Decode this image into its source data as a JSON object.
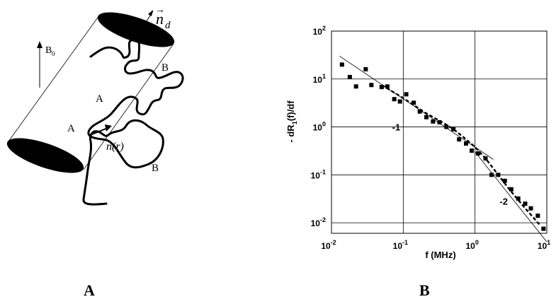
{
  "panel_a": {
    "panel_label": "A",
    "field_label": "B",
    "field_subscript": "0",
    "director_label": "n",
    "director_subscript": "d",
    "local_director_label": "n(r)",
    "points": [
      "A",
      "B",
      "A",
      "B"
    ]
  },
  "panel_b": {
    "panel_label": "B"
  },
  "chart_data": {
    "type": "scatter",
    "title": "",
    "xlabel": "f (MHz)",
    "ylabel_prefix": "- dR",
    "ylabel_subscript": "1",
    "ylabel_suffix": "(f)/df",
    "xscale": "log",
    "yscale": "log",
    "xlim": [
      0.01,
      10
    ],
    "ylim": [
      0.005,
      100
    ],
    "grid": true,
    "x_ticks": [
      {
        "value": 0.01,
        "base": "10",
        "exp": "-2"
      },
      {
        "value": 0.1,
        "base": "10",
        "exp": "-1"
      },
      {
        "value": 1,
        "base": "10",
        "exp": "0"
      },
      {
        "value": 10,
        "base": "10",
        "exp": "1"
      }
    ],
    "y_ticks": [
      {
        "value": 0.01,
        "base": "10",
        "exp": "-2"
      },
      {
        "value": 0.1,
        "base": "10",
        "exp": "-1"
      },
      {
        "value": 1,
        "base": "10",
        "exp": "0"
      },
      {
        "value": 10,
        "base": "10",
        "exp": "1"
      },
      {
        "value": 100,
        "base": "10",
        "exp": "2"
      }
    ],
    "annotations": [
      {
        "text": "-1",
        "x": 0.07,
        "y": 0.85
      },
      {
        "text": "-2",
        "x": 2.2,
        "y": 0.024
      }
    ],
    "points": {
      "x": [
        0.014,
        0.018,
        0.022,
        0.03,
        0.036,
        0.05,
        0.06,
        0.075,
        0.09,
        0.11,
        0.14,
        0.17,
        0.21,
        0.26,
        0.32,
        0.4,
        0.5,
        0.6,
        0.75,
        0.9,
        1.1,
        1.4,
        1.7,
        2.1,
        2.6,
        3.2,
        4.0,
        5.0,
        6.0,
        7.5,
        9.0
      ],
      "y": [
        20,
        11,
        7,
        16,
        7.5,
        6.8,
        7,
        3.8,
        3.4,
        4.8,
        3.2,
        2.1,
        1.6,
        1.3,
        1.25,
        1.0,
        0.9,
        0.55,
        0.45,
        0.32,
        0.28,
        0.22,
        0.1,
        0.1,
        0.075,
        0.05,
        0.032,
        0.025,
        0.02,
        0.014,
        0.0075
      ]
    },
    "series": [
      {
        "style": "thin",
        "x": [
          0.013,
          1.8
        ],
        "y": [
          30,
          0.21
        ]
      },
      {
        "style": "thin",
        "x": [
          1.0,
          10
        ],
        "y": [
          0.3,
          0.004
        ]
      },
      {
        "style": "dashed",
        "x": [
          0.05,
          0.1,
          0.2,
          0.35,
          0.5,
          0.7,
          1.0,
          1.4,
          2.0,
          3.0,
          5.0,
          8.0
        ],
        "y": [
          7.5,
          4.0,
          2.0,
          1.25,
          0.9,
          0.6,
          0.38,
          0.22,
          0.11,
          0.05,
          0.02,
          0.009
        ]
      }
    ]
  }
}
